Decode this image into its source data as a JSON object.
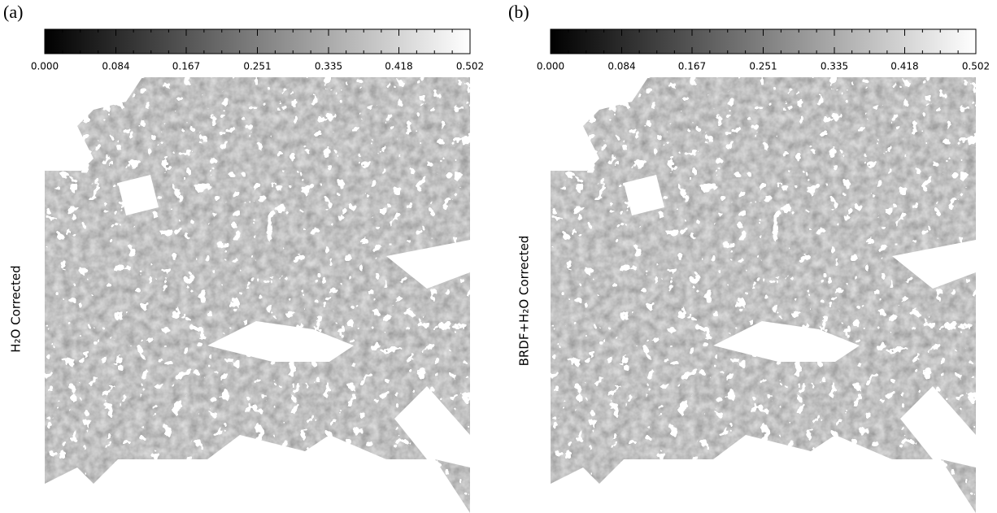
{
  "panels": [
    {
      "label": "(a)",
      "ylabel": "H₂O Corrected",
      "colorbar": {
        "range": [
          0,
          0.502
        ],
        "ticks": [
          {
            "value": 0,
            "label": "0.000"
          },
          0.084,
          0.167,
          0.251,
          0.335,
          0.418,
          0.502
        ]
      }
    },
    {
      "label": "(b)",
      "ylabel": "BRDF+H₂O Corrected",
      "colorbar": {
        "range": [
          0,
          0.502
        ],
        "ticks": [
          {
            "value": 0,
            "label": "0.000"
          },
          0.084,
          0.167,
          0.251,
          0.335,
          0.418,
          0.502
        ]
      }
    }
  ]
}
